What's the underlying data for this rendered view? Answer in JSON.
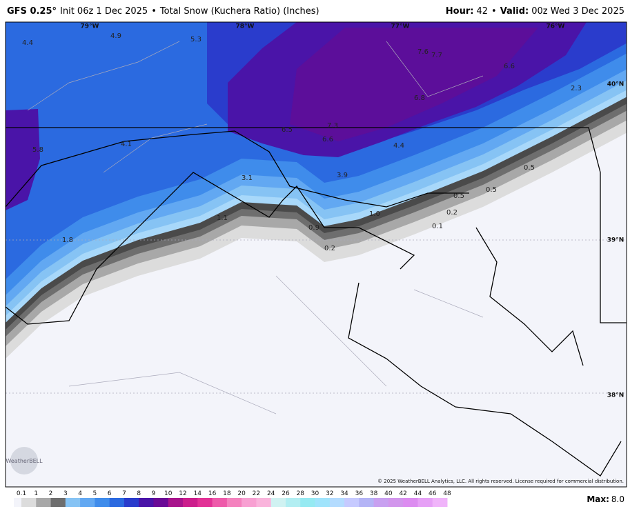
{
  "header": {
    "model": "GFS 0.25°",
    "init": "Init 06z 1 Dec 2025",
    "separator": "•",
    "product": "Total Snow (Kuchera Ratio) (Inches)",
    "hour_label": "Hour:",
    "hour": "42",
    "valid_label": "Valid:",
    "valid": "00z Wed 3 Dec 2025"
  },
  "map": {
    "grid_labels": [
      "79°W",
      "78°W",
      "77°W",
      "76°W",
      "40°N",
      "39°N",
      "38°N"
    ],
    "values": [
      "4.4",
      "4.9",
      "5.3",
      "7.6",
      "7.7",
      "6.6",
      "6.8",
      "2.3",
      "6.5",
      "7.3",
      "6.6",
      "5.8",
      "4.1",
      "4.4",
      "3.1",
      "3.9",
      "0.5",
      "0.5",
      "0.5",
      "0.2",
      "1.1",
      "1.0",
      "0.9",
      "0.1",
      "0.2",
      "1.8"
    ],
    "logo": "WeatherBELL",
    "copyright": "© 2025 WeatherBELL Analytics, LLC. All rights reserved. License required for commercial distribution."
  },
  "colorbar": {
    "labels": [
      "0.1",
      "1",
      "2",
      "3",
      "4",
      "5",
      "6",
      "7",
      "8",
      "9",
      "10",
      "12",
      "14",
      "16",
      "18",
      "20",
      "22",
      "24",
      "26",
      "28",
      "30",
      "32",
      "34",
      "36",
      "38",
      "40",
      "42",
      "44",
      "46",
      "48"
    ],
    "colors": [
      "#dcdcdc",
      "#a8a8a8",
      "#6e6e6e",
      "#86c3f4",
      "#62a8f2",
      "#3f8ceb",
      "#2b6ae0",
      "#2a3ccc",
      "#4a14a8",
      "#6a0a96",
      "#a8148c",
      "#cc1e8c",
      "#e23296",
      "#ee5aaa",
      "#f482be",
      "#f8a0d2",
      "#fab4dc",
      "#d0f2f2",
      "#b2eef2",
      "#96eaf2",
      "#a0e4fc",
      "#b4dcff",
      "#c6caff",
      "#b4b4f6",
      "#c8a0f0",
      "#d296ec",
      "#dc8cf0",
      "#e6a0f6",
      "#f0b4fa"
    ]
  },
  "footer": {
    "max_label": "Max:",
    "max": "8.0"
  }
}
